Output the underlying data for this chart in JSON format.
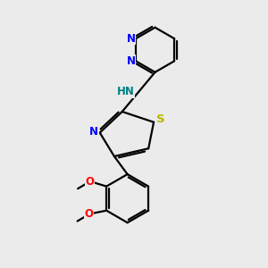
{
  "background_color": "#ebebeb",
  "bond_color": "#000000",
  "N_color": "#0000ff",
  "S_color": "#b8b800",
  "O_color": "#ff0000",
  "NH_color": "#008080",
  "line_width": 1.6,
  "font_size": 8.5,
  "fig_size": [
    3.0,
    3.0
  ],
  "dpi": 100,
  "xlim": [
    0,
    10
  ],
  "ylim": [
    0,
    10
  ]
}
